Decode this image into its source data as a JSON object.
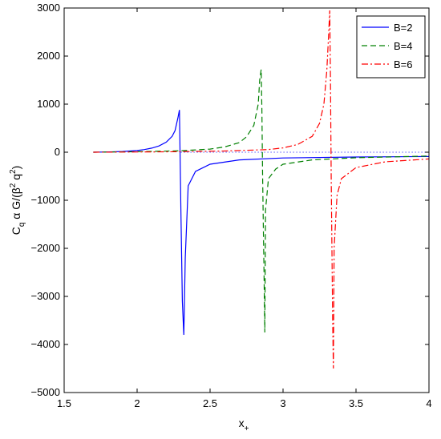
{
  "chart_data": {
    "type": "line",
    "title": "",
    "xlabel": "x",
    "xlabel_subscript": "+",
    "ylabel_parts": [
      "C",
      "q",
      " α G/(β",
      "2",
      " q",
      "2",
      ")"
    ],
    "xlim": [
      1.5,
      4
    ],
    "ylim": [
      -5000,
      3000
    ],
    "xticks": [
      1.5,
      2,
      2.5,
      3,
      3.5,
      4
    ],
    "xtick_labels": [
      "1.5",
      "2",
      "2.5",
      "3",
      "3.5",
      "4"
    ],
    "yticks": [
      -5000,
      -4000,
      -3000,
      -2000,
      -1000,
      0,
      1000,
      2000,
      3000
    ],
    "ytick_labels": [
      "−5000",
      "−4000",
      "−3000",
      "−2000",
      "−1000",
      "0",
      "1000",
      "2000",
      "3000"
    ],
    "grid": false,
    "legend_position": "top-right",
    "reference_line": {
      "y": 0,
      "style": "dotted",
      "color": "#0000ff",
      "x_start": 2.3,
      "x_end": 4
    },
    "series": [
      {
        "name": "B=2",
        "color": "#0000ff",
        "dash": "solid",
        "x": [
          1.7,
          1.8,
          1.9,
          2.0,
          2.05,
          2.1,
          2.15,
          2.2,
          2.24,
          2.26,
          2.28,
          2.29,
          2.3,
          2.31,
          2.32,
          2.33,
          2.35,
          2.4,
          2.5,
          2.7,
          3.0,
          3.5,
          4.0
        ],
        "y": [
          0,
          5,
          15,
          35,
          55,
          85,
          130,
          210,
          330,
          450,
          720,
          880,
          -1200,
          -3100,
          -3800,
          -2200,
          -700,
          -400,
          -250,
          -160,
          -120,
          -100,
          -90
        ]
      },
      {
        "name": "B=4",
        "color": "#008000",
        "dash": "dashed",
        "x": [
          1.7,
          2.0,
          2.3,
          2.5,
          2.6,
          2.7,
          2.75,
          2.8,
          2.83,
          2.84,
          2.85,
          2.855,
          2.86,
          2.87,
          2.875,
          2.88,
          2.9,
          2.95,
          3.0,
          3.2,
          3.5,
          4.0
        ],
        "y": [
          0,
          10,
          30,
          65,
          110,
          200,
          320,
          560,
          1000,
          1500,
          1720,
          900,
          -500,
          -2600,
          -3750,
          -1200,
          -550,
          -350,
          -250,
          -160,
          -115,
          -80
        ]
      },
      {
        "name": "B=6",
        "color": "#ff0000",
        "dash": "dashdot",
        "x": [
          1.7,
          2.2,
          2.6,
          2.9,
          3.0,
          3.1,
          3.2,
          3.25,
          3.28,
          3.3,
          3.31,
          3.32,
          3.325,
          3.33,
          3.34,
          3.345,
          3.35,
          3.37,
          3.4,
          3.5,
          3.7,
          4.0
        ],
        "y": [
          0,
          8,
          25,
          55,
          90,
          160,
          330,
          600,
          1000,
          1700,
          2300,
          2950,
          1500,
          -500,
          -3500,
          -4500,
          -2000,
          -900,
          -550,
          -320,
          -200,
          -140
        ]
      }
    ]
  }
}
